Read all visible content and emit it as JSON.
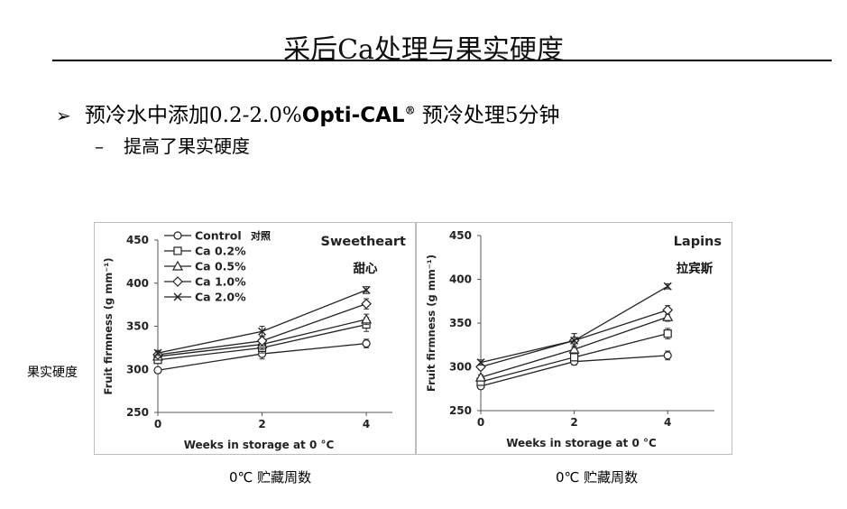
{
  "slide": {
    "title": "采后Ca处理与果实硬度",
    "bullet": {
      "prefix": "预冷水中添加0.2-2.0%",
      "product": "Opti-CAL",
      "reg": "®",
      "suffix": " 预冷处理5分钟"
    },
    "sub_bullet": "提高了果实硬度",
    "side_label": "果实硬度",
    "captions": [
      "0℃ 贮藏周数",
      "0℃ 贮藏周数"
    ],
    "legend_note": "对照"
  },
  "chart_data": [
    {
      "type": "line",
      "title": "Sweetheart",
      "subtitle": "甜心",
      "xlabel": "Weeks in storage at 0 °C",
      "ylabel": "Fruit firmness (g mm⁻¹)",
      "x": [
        0,
        2,
        4
      ],
      "xticks": [
        "0",
        "2",
        "4"
      ],
      "yticks": [
        "250",
        "300",
        "350",
        "400",
        "450"
      ],
      "xlim": [
        0,
        4.5
      ],
      "ylim": [
        250,
        450
      ],
      "legend_position": "top-left",
      "series": [
        {
          "name": "Control",
          "marker": "circle",
          "values": [
            299,
            318,
            330
          ],
          "errors": [
            3,
            6,
            5
          ]
        },
        {
          "name": "Ca 0.2%",
          "marker": "square",
          "values": [
            311,
            325,
            352
          ],
          "errors": [
            3,
            6,
            8
          ]
        },
        {
          "name": "Ca 0.5%",
          "marker": "triangle",
          "values": [
            315,
            329,
            358
          ],
          "errors": [
            3,
            6,
            6
          ]
        },
        {
          "name": "Ca 1.0%",
          "marker": "diamond",
          "values": [
            317,
            333,
            376
          ],
          "errors": [
            3,
            6,
            6
          ]
        },
        {
          "name": "Ca 2.0%",
          "marker": "x",
          "values": [
            319,
            344,
            392
          ],
          "errors": [
            3,
            6,
            4
          ]
        }
      ]
    },
    {
      "type": "line",
      "title": "Lapins",
      "subtitle": "拉宾斯",
      "xlabel": "Weeks in storage at 0 °C",
      "ylabel": "Fruit firmness (g mm⁻¹)",
      "x": [
        0,
        2,
        4
      ],
      "xticks": [
        "0",
        "2",
        "4"
      ],
      "yticks": [
        "250",
        "300",
        "350",
        "400",
        "450"
      ],
      "xlim": [
        0,
        5
      ],
      "ylim": [
        250,
        450
      ],
      "series": [
        {
          "name": "Control",
          "marker": "circle",
          "values": [
            278,
            306,
            313
          ],
          "errors": [
            3,
            4,
            5
          ]
        },
        {
          "name": "Ca 0.2%",
          "marker": "square",
          "values": [
            283,
            311,
            338
          ],
          "errors": [
            3,
            4,
            6
          ]
        },
        {
          "name": "Ca 0.5%",
          "marker": "triangle",
          "values": [
            288,
            320,
            357
          ],
          "errors": [
            3,
            4,
            5
          ]
        },
        {
          "name": "Ca 1.0%",
          "marker": "diamond",
          "values": [
            300,
            330,
            365
          ],
          "errors": [
            3,
            8,
            5
          ]
        },
        {
          "name": "Ca 2.0%",
          "marker": "x",
          "values": [
            305,
            330,
            392
          ],
          "errors": [
            3,
            8,
            3
          ]
        }
      ]
    }
  ]
}
